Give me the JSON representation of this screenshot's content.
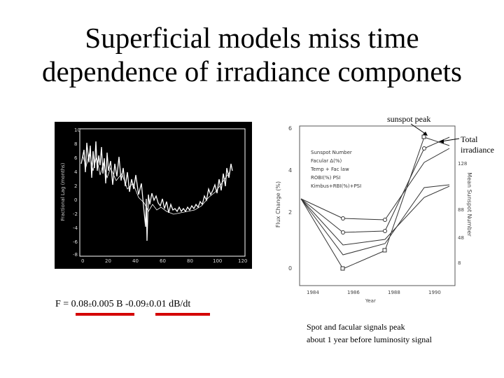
{
  "slide": {
    "title_line1": "Superficial models miss time",
    "title_line2": "dependence of irradiance componets"
  },
  "annotations": {
    "sunspot_peak": "sunspot peak",
    "total_line1": "Total",
    "total_line2": "irradiance"
  },
  "formula": {
    "f": "F = 0.08",
    "pm1": "±",
    "a_err": "0.005 B -0.09",
    "pm2": "±",
    "b_err": "0.01  dB/dt"
  },
  "caption": {
    "line1": "Spot and facular signals peak",
    "line2": "about 1 year before luminosity signal"
  },
  "left_plot": {
    "x_ticks": [
      "0",
      "20",
      "40",
      "60",
      "80",
      "100",
      "120"
    ],
    "y_ticks": [
      "10",
      "8",
      "6",
      "4",
      "2",
      "0",
      "-2",
      "-4",
      "-6",
      "-8"
    ],
    "ylabel": "Fractional Lag (months)"
  },
  "right_plot": {
    "x_ticks": [
      "1984",
      "1986",
      "1988",
      "1990"
    ],
    "y_ticks_left": [
      "6",
      "4",
      "2",
      "0"
    ],
    "y_ticks_right": [
      "128",
      "88",
      "48",
      "8"
    ],
    "ylabel_left": "Flux Change (%)",
    "ylabel_right": "Mean Sunspot Number",
    "xlabel": "Year",
    "legend": [
      "Sunspot Number",
      "Facular Δ(%)",
      "Temp + Fac law",
      "ROBI(%) PSI",
      "Kimbus+RBI(%)+PSI"
    ]
  },
  "colors": {
    "underline": "#d40000"
  }
}
